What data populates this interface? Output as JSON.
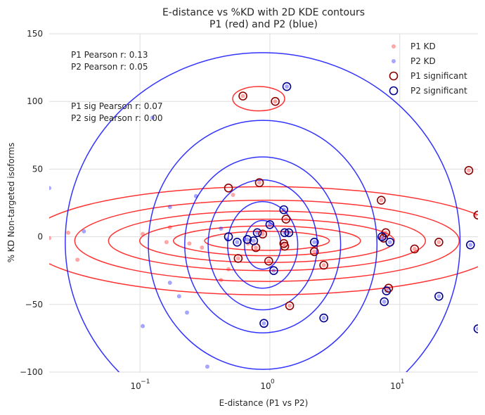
{
  "chart_data": {
    "type": "scatter",
    "title": "E-distance vs %KD with 2D KDE contours",
    "subtitle": "P1 (red) and P2 (blue)",
    "xlabel": "E-distance (P1 vs P2)",
    "ylabel": "% KD Non-targeted isoforms",
    "xscale": "log",
    "xlim": [
      0.02,
      40
    ],
    "ylim": [
      -100,
      150
    ],
    "yticks": [
      -100,
      -50,
      0,
      50,
      100,
      150
    ],
    "xticks": [
      {
        "value": 0.1,
        "base": "10",
        "exp": "−1"
      },
      {
        "value": 1,
        "base": "10",
        "exp": "0"
      },
      {
        "value": 10,
        "base": "10",
        "exp": "1"
      }
    ],
    "grid": true,
    "legend_position": "top-right",
    "colors": {
      "p1": "#ff0000",
      "p2": "#0000ff",
      "p1_sig_edge": "#8b0000",
      "p2_sig_edge": "#00008b",
      "grid": "#dddddd"
    },
    "annotations": [
      "P1 Pearson r: 0.13",
      "P2 Pearson r: 0.05",
      "P1 sig Pearson r: 0.07",
      "P2 sig Pearson r: 0.00"
    ],
    "series": [
      {
        "name": "P1 KD",
        "marker": "small",
        "points": [
          [
            0.02,
            -1
          ],
          [
            0.028,
            3
          ],
          [
            0.033,
            -17
          ],
          [
            0.105,
            2
          ],
          [
            0.16,
            -4
          ],
          [
            0.17,
            7
          ],
          [
            0.24,
            -5
          ],
          [
            0.3,
            -8
          ],
          [
            0.42,
            -32
          ],
          [
            0.48,
            -24
          ],
          [
            0.52,
            31
          ],
          [
            0.57,
            -16
          ],
          [
            0.62,
            104
          ],
          [
            0.68,
            -5
          ],
          [
            0.78,
            -8
          ],
          [
            0.83,
            40
          ],
          [
            0.88,
            2
          ],
          [
            0.98,
            -18
          ],
          [
            1.1,
            100
          ],
          [
            1.28,
            -5
          ],
          [
            1.3,
            -7
          ],
          [
            1.33,
            13
          ],
          [
            1.42,
            -51
          ],
          [
            2.2,
            -11
          ],
          [
            2.6,
            -21
          ],
          [
            7.2,
            27
          ],
          [
            7.5,
            -1
          ],
          [
            7.8,
            3
          ],
          [
            8.2,
            -38
          ],
          [
            13,
            -9
          ],
          [
            20,
            -4
          ],
          [
            34,
            49
          ],
          [
            38,
            16
          ]
        ]
      },
      {
        "name": "P2 KD",
        "marker": "small",
        "points": [
          [
            0.02,
            36
          ],
          [
            0.037,
            4
          ],
          [
            0.105,
            -66
          ],
          [
            0.125,
            88
          ],
          [
            0.17,
            22
          ],
          [
            0.17,
            -34
          ],
          [
            0.2,
            -44
          ],
          [
            0.23,
            -56
          ],
          [
            0.27,
            30
          ],
          [
            0.33,
            -96
          ],
          [
            0.36,
            -105
          ],
          [
            0.42,
            6
          ],
          [
            0.47,
            -2
          ],
          [
            0.56,
            -4
          ],
          [
            0.67,
            -2
          ],
          [
            0.75,
            -3
          ],
          [
            0.8,
            3
          ],
          [
            0.9,
            -64
          ],
          [
            1.0,
            9
          ],
          [
            1.07,
            -25
          ],
          [
            1.28,
            20
          ],
          [
            1.3,
            3
          ],
          [
            1.35,
            111
          ],
          [
            1.4,
            3
          ],
          [
            2.2,
            -4
          ],
          [
            2.6,
            -60
          ],
          [
            7.3,
            -1
          ],
          [
            7.6,
            -48
          ],
          [
            7.9,
            -40
          ],
          [
            8.4,
            -4
          ],
          [
            20,
            -44
          ],
          [
            35,
            -6
          ],
          [
            40,
            -68
          ]
        ]
      },
      {
        "name": "P1 significant",
        "marker": "ring",
        "points": [
          [
            0.62,
            104
          ],
          [
            1.1,
            100
          ],
          [
            0.83,
            40
          ],
          [
            0.48,
            36
          ],
          [
            0.57,
            -16
          ],
          [
            0.78,
            -8
          ],
          [
            0.88,
            2
          ],
          [
            0.98,
            -18
          ],
          [
            1.28,
            -5
          ],
          [
            1.3,
            -7
          ],
          [
            1.33,
            13
          ],
          [
            1.42,
            -51
          ],
          [
            2.2,
            -11
          ],
          [
            2.6,
            -21
          ],
          [
            7.2,
            27
          ],
          [
            7.5,
            -1
          ],
          [
            7.8,
            3
          ],
          [
            8.2,
            -38
          ],
          [
            13,
            -9
          ],
          [
            20,
            -4
          ],
          [
            34,
            49
          ],
          [
            40,
            16
          ]
        ]
      },
      {
        "name": "P2 significant",
        "marker": "ring",
        "points": [
          [
            1.35,
            111
          ],
          [
            0.48,
            0
          ],
          [
            0.56,
            -4
          ],
          [
            0.67,
            -2
          ],
          [
            0.75,
            -3
          ],
          [
            0.8,
            3
          ],
          [
            0.9,
            -64
          ],
          [
            1.0,
            9
          ],
          [
            1.07,
            -25
          ],
          [
            1.28,
            20
          ],
          [
            1.3,
            3
          ],
          [
            1.4,
            3
          ],
          [
            2.2,
            -4
          ],
          [
            2.6,
            -60
          ],
          [
            7.3,
            0
          ],
          [
            7.6,
            -48
          ],
          [
            7.9,
            -40
          ],
          [
            8.4,
            -4
          ],
          [
            20,
            -44
          ],
          [
            35,
            -6
          ],
          [
            40,
            -68
          ]
        ]
      }
    ],
    "contours": {
      "p1": [
        {
          "center": [
            0.95,
            -3
          ],
          "rx_decades": 0.48,
          "ry": 7
        },
        {
          "center": [
            0.95,
            -3
          ],
          "rx_decades": 0.72,
          "ry": 11
        },
        {
          "center": [
            0.95,
            -3
          ],
          "rx_decades": 0.98,
          "ry": 16
        },
        {
          "center": [
            0.95,
            -3
          ],
          "rx_decades": 1.22,
          "ry": 22
        },
        {
          "center": [
            0.95,
            -3
          ],
          "rx_decades": 1.48,
          "ry": 30
        },
        {
          "center": [
            0.95,
            -3
          ],
          "rx_decades": 1.85,
          "ry": 40
        },
        {
          "center": [
            0.82,
            102
          ],
          "rx_decades": 0.2,
          "ry": 9
        }
      ],
      "p2": [
        {
          "center": [
            0.88,
            -6
          ],
          "rx_decades": 0.14,
          "ry": 18
        },
        {
          "center": [
            0.88,
            -6
          ],
          "rx_decades": 0.27,
          "ry": 32
        },
        {
          "center": [
            0.88,
            -6
          ],
          "rx_decades": 0.42,
          "ry": 48
        },
        {
          "center": [
            0.88,
            -6
          ],
          "rx_decades": 0.6,
          "ry": 65
        },
        {
          "center": [
            0.88,
            -6
          ],
          "rx_decades": 0.88,
          "ry": 92
        },
        {
          "center": [
            0.88,
            -4
          ],
          "rx_decades": 1.52,
          "ry": 140
        }
      ]
    }
  }
}
